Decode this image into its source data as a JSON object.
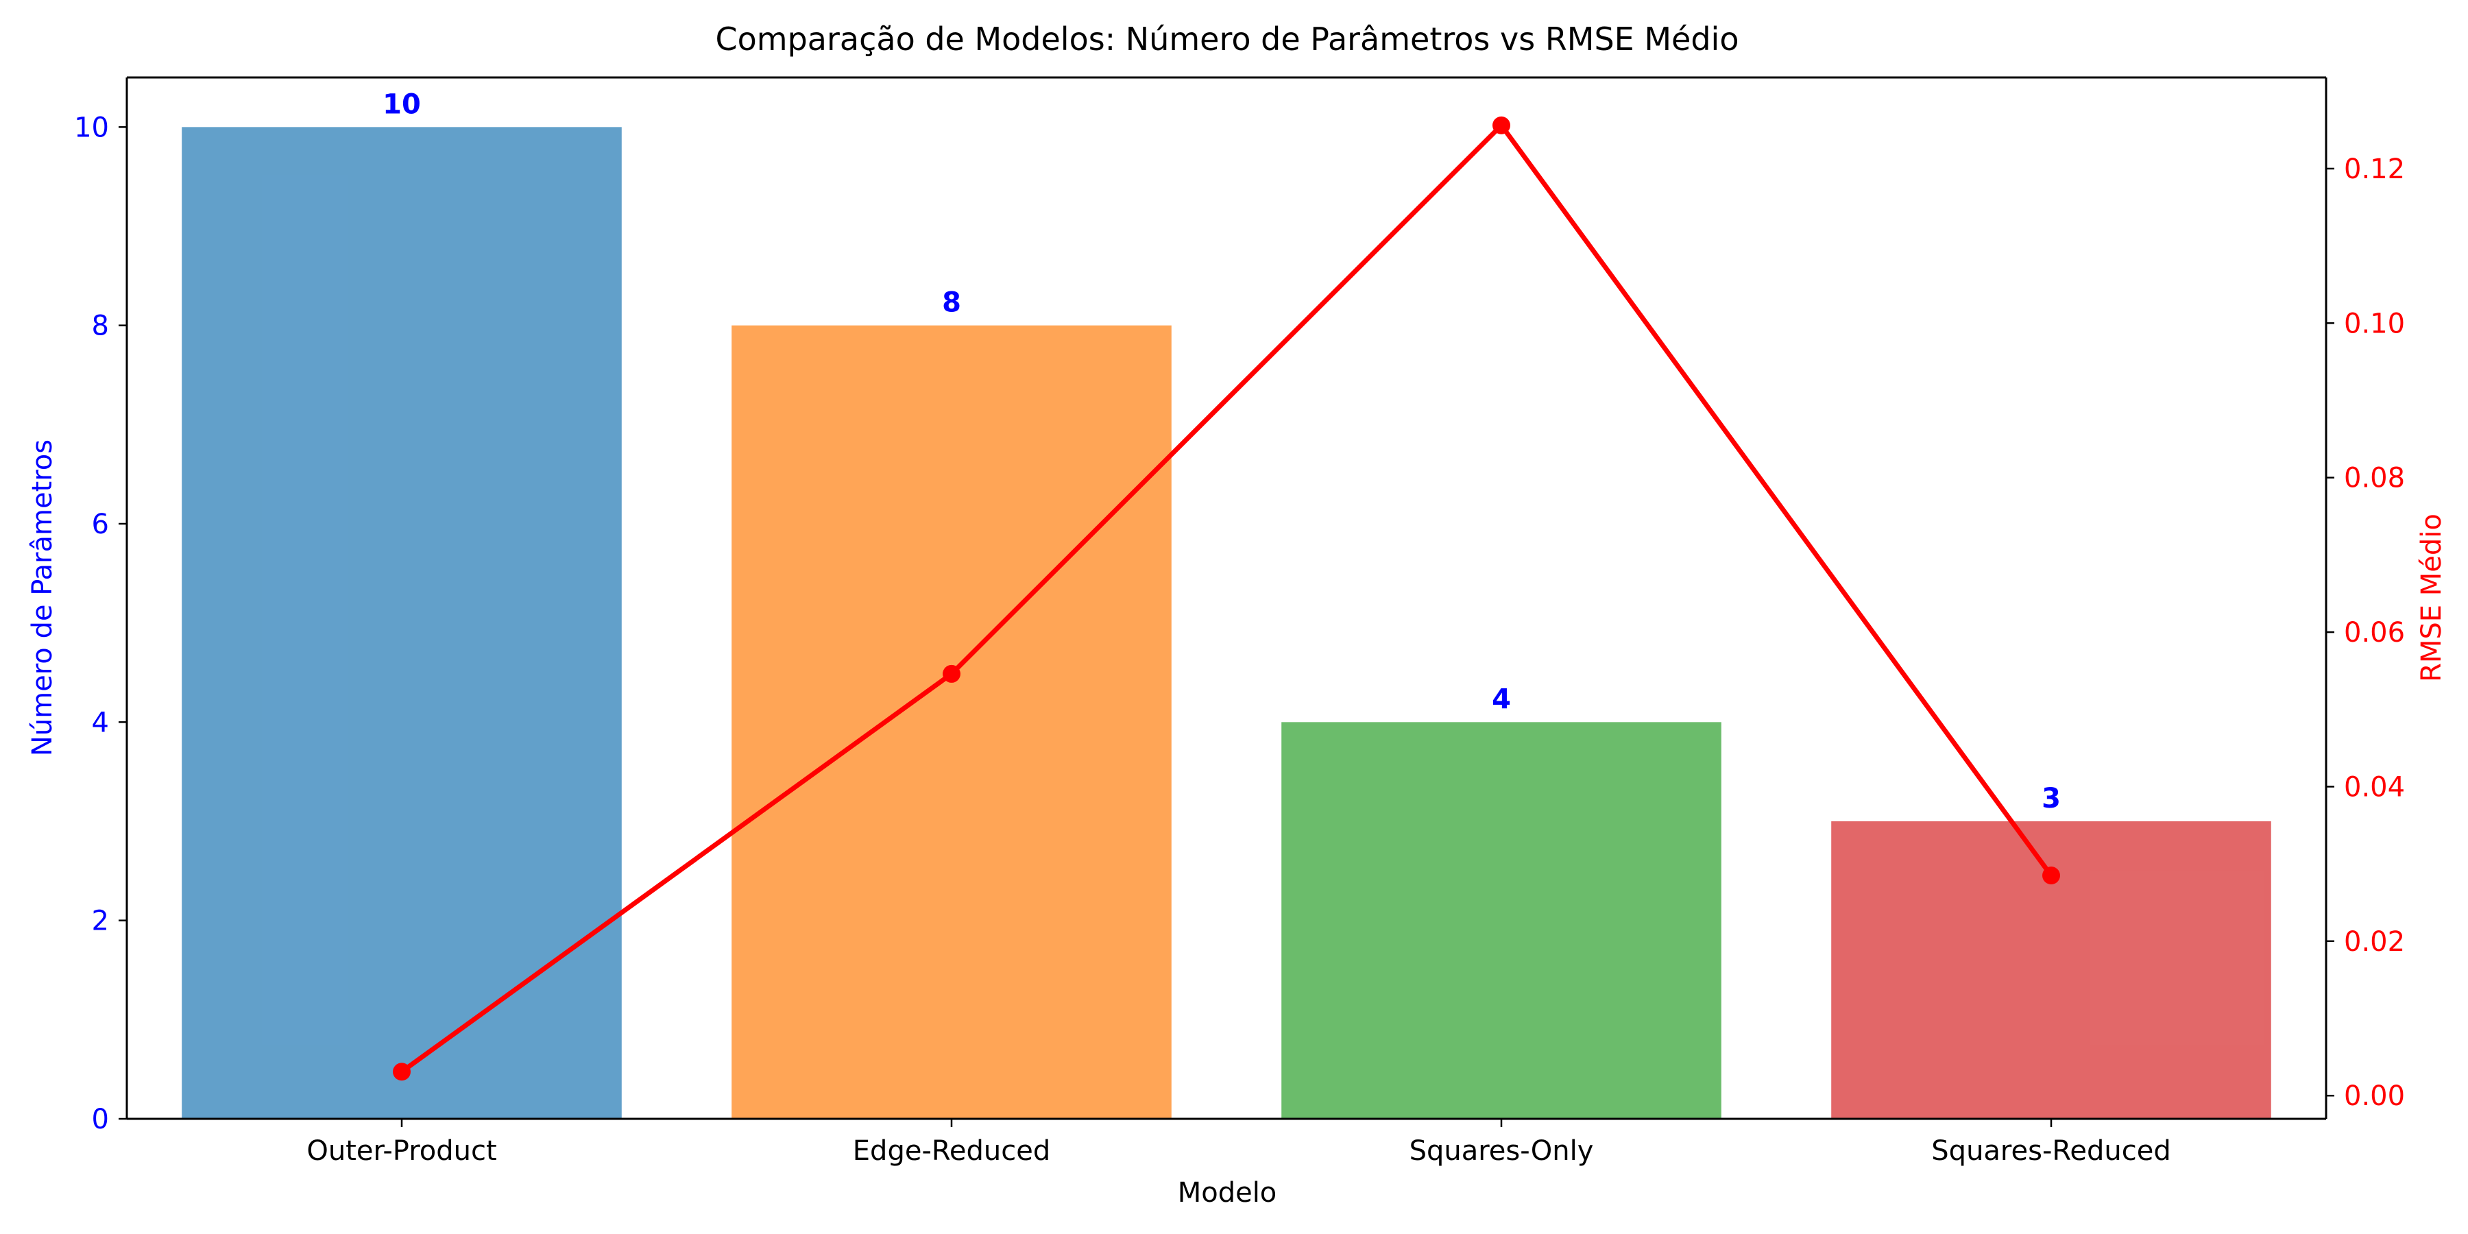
{
  "chart_data": {
    "type": "bar",
    "title": "Comparação de Modelos: Número de Parâmetros vs RMSE Médio",
    "xlabel": "Modelo",
    "ylabel": "Número de Parâmetros",
    "y2label": "RMSE Médio",
    "categories": [
      "Outer-Product",
      "Edge-Reduced",
      "Squares-Only",
      "Squares-Reduced"
    ],
    "series": [
      {
        "name": "",
        "type": "bar",
        "axis": "left",
        "values": [
          10,
          8,
          4,
          3
        ],
        "value_labels": [
          "10",
          "8",
          "4",
          "3"
        ],
        "colors": [
          "#1f77b4",
          "#ff7f0e",
          "#2ca02c",
          "#d62728"
        ]
      },
      {
        "name": "",
        "type": "line",
        "axis": "right",
        "values": [
          0.0031,
          0.0546,
          0.1256,
          0.0285
        ],
        "color": "#ff0000"
      }
    ],
    "ylim": [
      0,
      10.5
    ],
    "y2lim": [
      -0.003,
      0.1318
    ],
    "yticks": [
      0,
      2,
      4,
      6,
      8,
      10
    ],
    "y2ticks": [
      "0.00",
      "0.02",
      "0.04",
      "0.06",
      "0.08",
      "0.10",
      "0.12"
    ],
    "grid": false,
    "colors": {
      "left_axis": "#0000ff",
      "right_axis": "#ff0000",
      "text": "#000000"
    }
  }
}
